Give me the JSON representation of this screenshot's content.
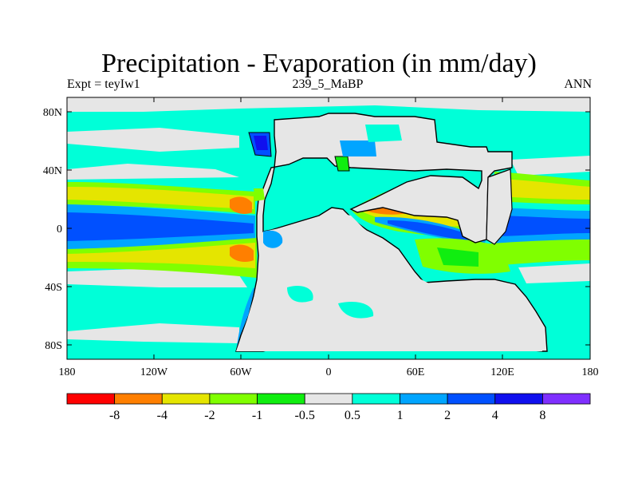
{
  "title": "Precipitation - Evaporation (in mm/day)",
  "left_label": "Expt = teyIw1",
  "center_label": "239_5_MaBP",
  "right_label": "ANN",
  "map": {
    "lon_ticks": [
      "180",
      "120W",
      "60W",
      "0",
      "60E",
      "120E",
      "180"
    ],
    "lat_ticks": [
      "80N",
      "40N",
      "0",
      "40S",
      "80S"
    ]
  },
  "colorbar": {
    "colors": [
      "#ff0000",
      "#ff7f00",
      "#e5e500",
      "#80ff00",
      "#10ee10",
      "#e6e6e6",
      "#00ffd8",
      "#00a5ff",
      "#0050ff",
      "#1010ee",
      "#7f2fff"
    ],
    "labels": [
      "-8",
      "-4",
      "-2",
      "-1",
      "-0.5",
      "0.5",
      "1",
      "2",
      "4",
      "8"
    ]
  },
  "colors": {
    "land": "#e6e6e6",
    "ocean_base": "#00ffd8"
  }
}
